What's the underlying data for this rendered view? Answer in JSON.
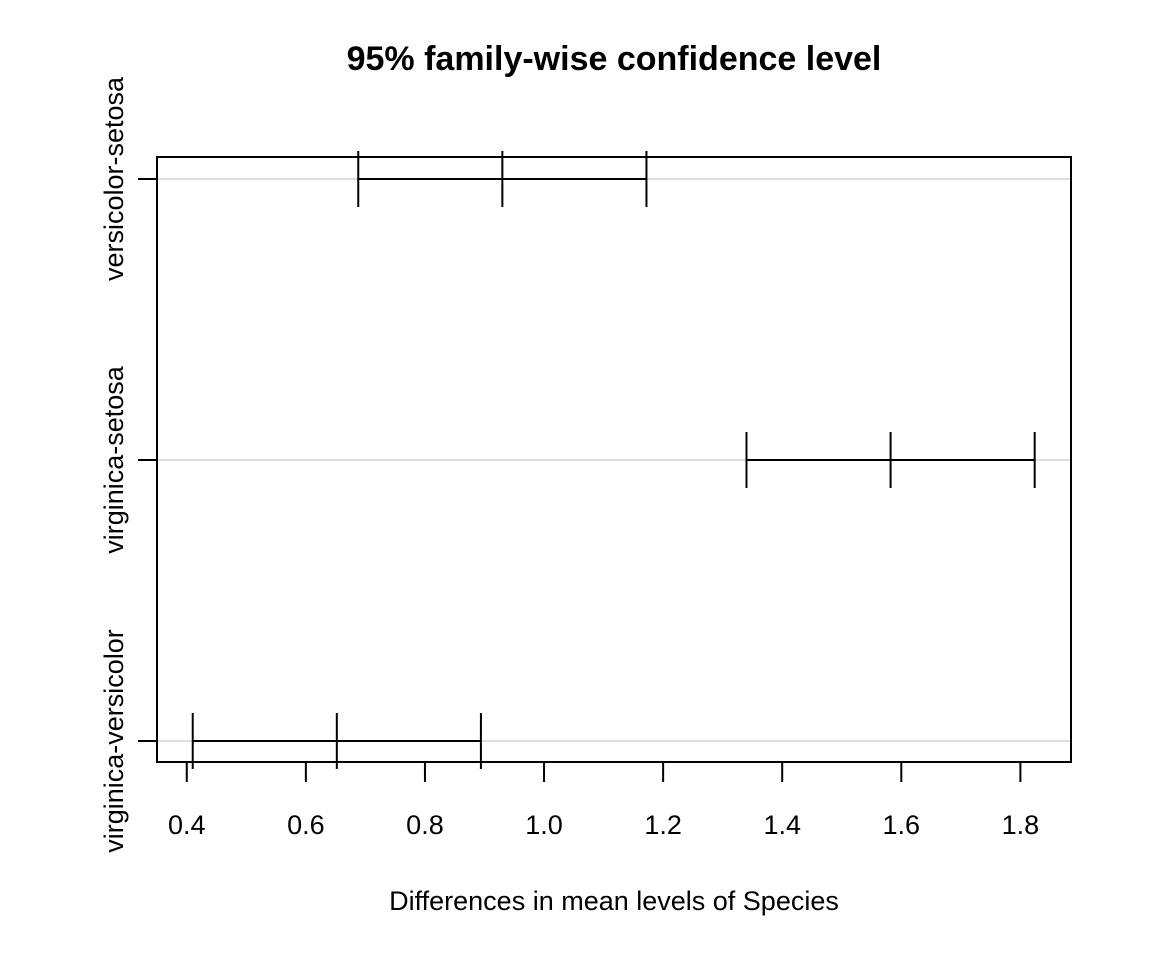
{
  "chart_data": {
    "type": "errorbar",
    "title": "95% family-wise confidence level",
    "xlabel": "Differences in mean levels of Species",
    "ylabel": "",
    "xlim": [
      0.35,
      1.885
    ],
    "x_ticks": [
      0.4,
      0.6,
      0.8,
      1.0,
      1.2,
      1.4,
      1.6,
      1.8
    ],
    "x_tick_labels": [
      "0.4",
      "0.6",
      "0.8",
      "1.0",
      "1.2",
      "1.4",
      "1.6",
      "1.8"
    ],
    "grid": "horizontal",
    "comparisons": [
      {
        "label": "versicolor-setosa",
        "lwr": 0.688,
        "diff": 0.93,
        "upr": 1.172
      },
      {
        "label": "virginica-setosa",
        "lwr": 1.34,
        "diff": 1.582,
        "upr": 1.824
      },
      {
        "label": "virginica-versicolor",
        "lwr": 0.41,
        "diff": 0.652,
        "upr": 0.894
      }
    ]
  }
}
